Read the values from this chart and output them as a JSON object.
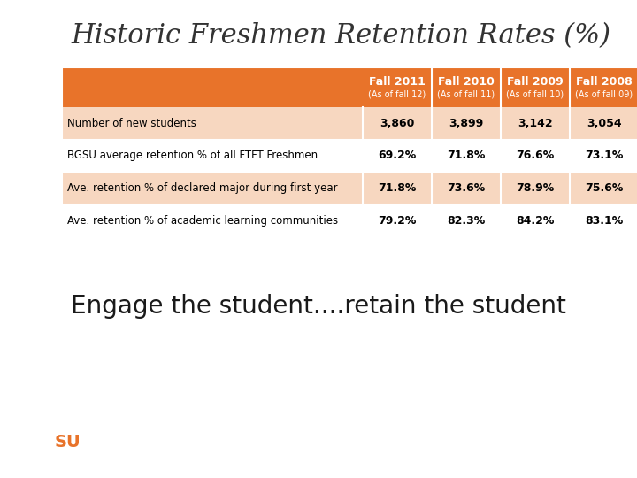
{
  "title": "Historic Freshmen Retention Rates (%)",
  "subtitle": "Engage the student....retain the student",
  "bg_color": "#ffffff",
  "top_bar_color": "#e8732a",
  "bottom_bar_color": "#4a1c00",
  "header_bg": "#e8732a",
  "row_bg_odd": "#f7d7c0",
  "row_bg_even": "#ffffff",
  "col_headers": [
    "Fall 2011",
    "Fall 2010",
    "Fall 2009",
    "Fall 2008"
  ],
  "col_subheaders": [
    "(As of fall 12)",
    "(As of fall 11)",
    "(As of fall 10)",
    "(As of fall 09)"
  ],
  "row_labels": [
    "Number of new students",
    "BGSU average retention % of all FTFT Freshmen",
    "Ave. retention % of declared major during first year",
    "Ave. retention % of academic learning communities"
  ],
  "table_data": [
    [
      "3,860",
      "3,899",
      "3,142",
      "3,054"
    ],
    [
      "69.2%",
      "71.8%",
      "76.6%",
      "73.1%"
    ],
    [
      "71.8%",
      "73.6%",
      "78.9%",
      "75.6%"
    ],
    [
      "79.2%",
      "82.3%",
      "84.2%",
      "83.1%"
    ]
  ],
  "title_color": "#333333",
  "header_text_color": "#ffffff",
  "row_label_color": "#000000",
  "data_color": "#000000"
}
